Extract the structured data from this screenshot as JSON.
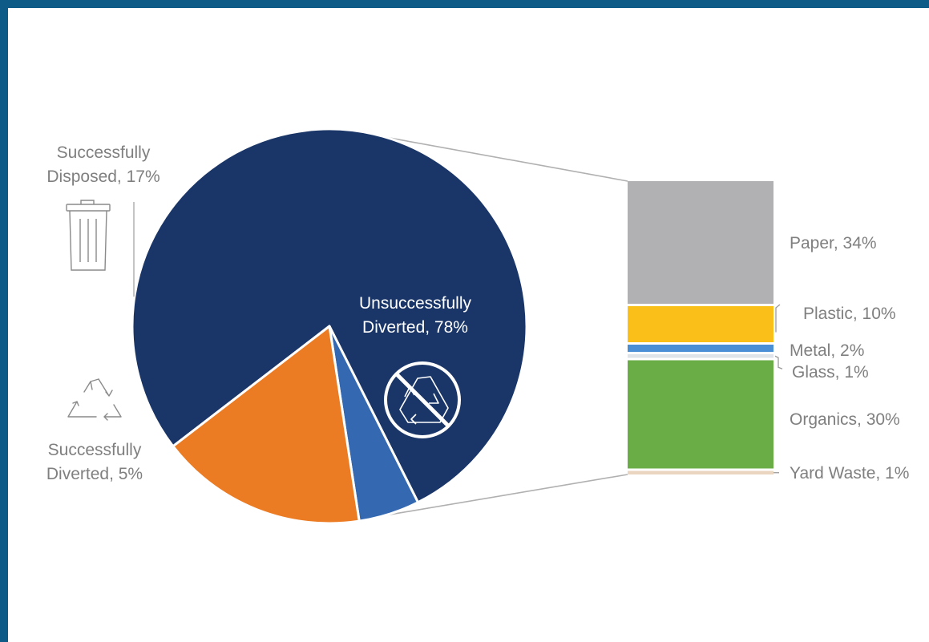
{
  "chart_data": [
    {
      "type": "pie",
      "slices": [
        {
          "name": "Unsuccessfully Diverted",
          "label_lines": [
            "Unsuccessfully",
            "Diverted, 78%"
          ],
          "value": 78,
          "color": "#1a3668"
        },
        {
          "name": "Successfully Diverted",
          "label_lines": [
            "Successfully",
            "Diverted, 5%"
          ],
          "value": 5,
          "color": "#3468b1"
        },
        {
          "name": "Successfully Disposed",
          "label_lines": [
            "Successfully",
            "Disposed, 17%"
          ],
          "value": 17,
          "color": "#ec7c24"
        }
      ],
      "icons": {
        "disposed": "trash-can-icon",
        "diverted": "recycle-icon",
        "unsuccessfully_diverted": "no-recycling-icon"
      }
    },
    {
      "type": "bar",
      "stacked": true,
      "segments": [
        {
          "name": "Paper",
          "label": "Paper, 34%",
          "value": 34,
          "color": "#b1b1b3"
        },
        {
          "name": "Plastic",
          "label": "Plastic, 10%",
          "value": 10,
          "color": "#fbbf1a"
        },
        {
          "name": "Metal",
          "label": "Metal, 2%",
          "value": 2,
          "color": "#4a8fd6"
        },
        {
          "name": "Glass",
          "label": "Glass, 1%",
          "value": 1,
          "color": "#dfe4ea"
        },
        {
          "name": "Organics",
          "label": "Organics, 30%",
          "value": 30,
          "color": "#6aac45"
        },
        {
          "name": "Yard Waste",
          "label": "Yard Waste, 1%",
          "value": 1,
          "color": "#ead6c0"
        }
      ]
    }
  ]
}
